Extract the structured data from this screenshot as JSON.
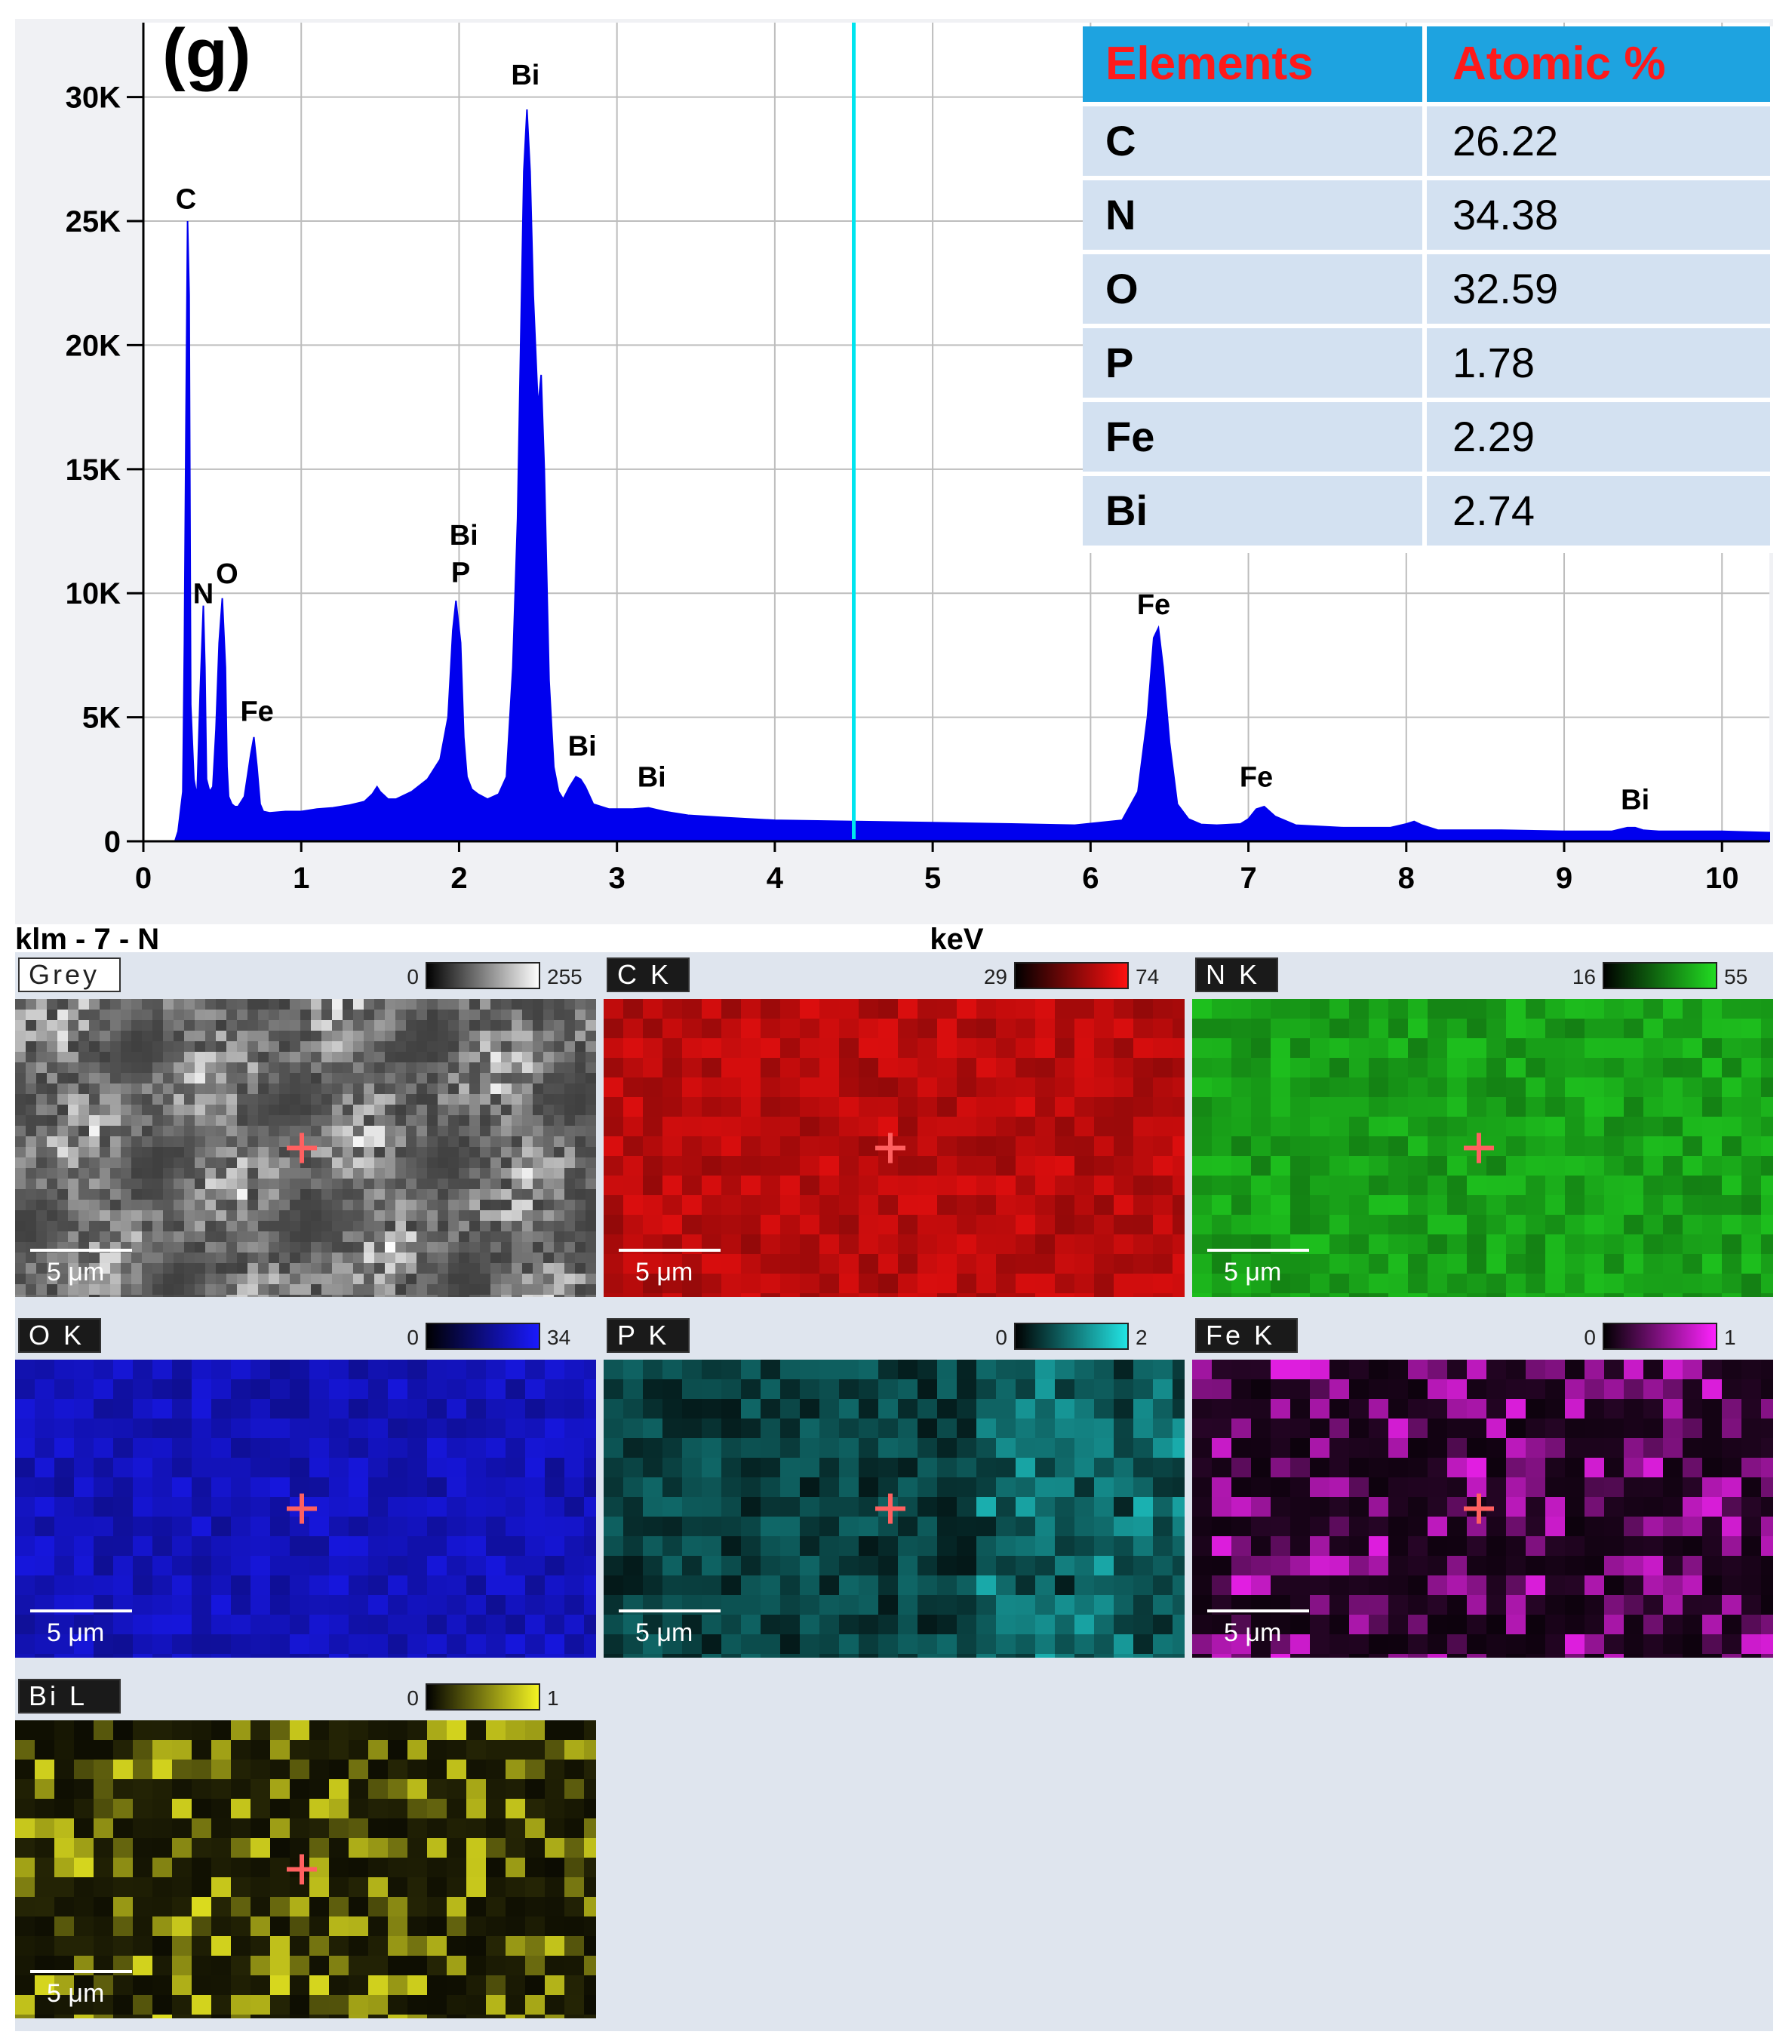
{
  "panel_label": "(g)",
  "sample_name": "klm - 7 - N",
  "chart_data": {
    "type": "line",
    "xlabel": "keV",
    "ylabel": "",
    "xlim": [
      0,
      10.3
    ],
    "ylim": [
      0,
      33000
    ],
    "grid": true,
    "x_ticks": [
      0,
      1,
      2,
      3,
      4,
      5,
      6,
      7,
      8,
      9,
      10
    ],
    "y_ticks": [
      {
        "value": 0,
        "label": "0"
      },
      {
        "value": 5000,
        "label": "5K"
      },
      {
        "value": 10000,
        "label": "10K"
      },
      {
        "value": 15000,
        "label": "15K"
      },
      {
        "value": 20000,
        "label": "20K"
      },
      {
        "value": 25000,
        "label": "25K"
      },
      {
        "value": 30000,
        "label": "30K"
      }
    ],
    "marker_kev": 4.5,
    "series": [
      {
        "x": [
          0.2,
          0.22,
          0.25,
          0.26,
          0.27,
          0.28,
          0.29,
          0.3,
          0.32,
          0.34,
          0.36,
          0.38,
          0.39,
          0.4,
          0.42,
          0.44,
          0.46,
          0.48,
          0.5,
          0.52,
          0.53,
          0.54,
          0.56,
          0.58,
          0.6,
          0.64,
          0.68,
          0.7,
          0.72,
          0.74,
          0.76,
          0.8,
          0.9,
          1.0,
          1.1,
          1.2,
          1.3,
          1.4,
          1.45,
          1.48,
          1.5,
          1.55,
          1.6,
          1.7,
          1.8,
          1.88,
          1.93,
          1.96,
          1.98,
          2.01,
          2.03,
          2.05,
          2.08,
          2.12,
          2.18,
          2.25,
          2.3,
          2.34,
          2.37,
          2.39,
          2.41,
          2.43,
          2.45,
          2.47,
          2.5,
          2.52,
          2.54,
          2.57,
          2.6,
          2.63,
          2.66,
          2.7,
          2.74,
          2.77,
          2.8,
          2.85,
          2.95,
          3.1,
          3.2,
          3.3,
          3.45,
          3.7,
          4.0,
          4.5,
          5.0,
          5.5,
          5.9,
          6.2,
          6.3,
          6.36,
          6.4,
          6.43,
          6.46,
          6.5,
          6.55,
          6.62,
          6.7,
          6.8,
          6.95,
          7.0,
          7.05,
          7.1,
          7.17,
          7.3,
          7.6,
          7.9,
          8.0,
          8.05,
          8.1,
          8.2,
          8.6,
          9.0,
          9.3,
          9.4,
          9.45,
          9.5,
          9.6,
          10.0,
          10.3
        ],
        "y": [
          0,
          400,
          2000,
          8000,
          17000,
          25000,
          22000,
          5500,
          2500,
          1800,
          6000,
          9500,
          7000,
          2500,
          2000,
          2200,
          4500,
          8000,
          9800,
          7000,
          3000,
          1800,
          1500,
          1400,
          1400,
          1800,
          3500,
          4200,
          3000,
          1500,
          1200,
          1150,
          1200,
          1200,
          1300,
          1350,
          1450,
          1600,
          1900,
          2200,
          2000,
          1700,
          1700,
          2000,
          2500,
          3300,
          5000,
          8500,
          9700,
          8000,
          4200,
          2600,
          2100,
          1900,
          1700,
          1900,
          2600,
          7000,
          13000,
          20000,
          27000,
          29500,
          27000,
          22000,
          17500,
          18800,
          15000,
          6500,
          3000,
          2000,
          1700,
          2200,
          2600,
          2500,
          2200,
          1500,
          1300,
          1300,
          1350,
          1200,
          1050,
          950,
          850,
          800,
          750,
          700,
          650,
          850,
          2000,
          5000,
          8200,
          8600,
          7000,
          4000,
          1500,
          900,
          680,
          650,
          700,
          900,
          1300,
          1400,
          1000,
          650,
          550,
          550,
          700,
          800,
          650,
          450,
          450,
          400,
          400,
          550,
          550,
          450,
          400,
          400,
          350
        ]
      }
    ],
    "annotations": [
      {
        "label": "C",
        "x": 0.27,
        "y": 25500
      },
      {
        "label": "N",
        "x": 0.38,
        "y": 9600
      },
      {
        "label": "O",
        "x": 0.53,
        "y": 10400
      },
      {
        "label": "Fe",
        "x": 0.72,
        "y": 4850
      },
      {
        "label": "Bi",
        "x": 2.03,
        "y": 11950
      },
      {
        "label": "P",
        "x": 2.01,
        "y": 10450
      },
      {
        "label": "Bi",
        "x": 2.42,
        "y": 30500
      },
      {
        "label": "Bi",
        "x": 2.78,
        "y": 3450
      },
      {
        "label": "Bi",
        "x": 3.22,
        "y": 2200
      },
      {
        "label": "Fe",
        "x": 6.4,
        "y": 9150
      },
      {
        "label": "Fe",
        "x": 7.05,
        "y": 2200
      },
      {
        "label": "Bi",
        "x": 9.45,
        "y": 1300
      }
    ]
  },
  "table": {
    "headers": [
      "Elements",
      "Atomic %"
    ],
    "rows": [
      [
        "C",
        "26.22"
      ],
      [
        "N",
        "34.38"
      ],
      [
        "O",
        "32.59"
      ],
      [
        "P",
        "1.78"
      ],
      [
        "Fe",
        "2.29"
      ],
      [
        "Bi",
        "2.74"
      ]
    ]
  },
  "scale_bar_label": "5 μm",
  "maps": [
    {
      "id": "grey",
      "label": "Grey",
      "min": "0",
      "max": "255",
      "color": "#ffffff",
      "mode": "grey"
    },
    {
      "id": "c",
      "label": "C K",
      "min": "29",
      "max": "74",
      "color": "#ff1010",
      "mode": "color"
    },
    {
      "id": "n",
      "label": "N K",
      "min": "16",
      "max": "55",
      "color": "#22dd22",
      "mode": "color"
    },
    {
      "id": "o",
      "label": "O K",
      "min": "0",
      "max": "34",
      "color": "#1a1aff",
      "mode": "color"
    },
    {
      "id": "p",
      "label": "P K",
      "min": "0",
      "max": "2",
      "color": "#22e5e5",
      "mode": "color"
    },
    {
      "id": "fe",
      "label": "Fe K",
      "min": "0",
      "max": "1",
      "color": "#ff22ff",
      "mode": "color"
    },
    {
      "id": "bi",
      "label": "Bi L",
      "min": "0",
      "max": "1",
      "color": "#f5f522",
      "mode": "color"
    }
  ],
  "colors": {
    "spectrum": "#0000ee",
    "marker": "#00e5ee",
    "table_header_bg": "#1ea3e0",
    "table_header_text": "#ff1a1a",
    "table_row_bg": "#d3e1f1",
    "grid": "#bdbdbd",
    "maps_bg": "#dfe5ee",
    "cross": "#ff6060"
  }
}
